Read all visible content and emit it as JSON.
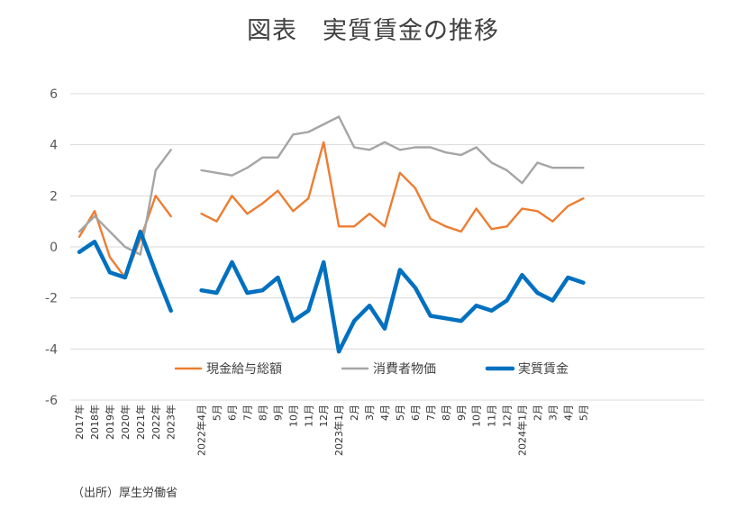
{
  "title": "図表　実質賃金の推移",
  "source": "（出所）厚生労働省",
  "chart_data": {
    "type": "line",
    "title": "図表　実質賃金の推移",
    "ylim": [
      -6,
      6
    ],
    "yticks": [
      6,
      4,
      2,
      0,
      -2,
      -4,
      -6
    ],
    "grid": true,
    "legend_position": "bottom-center",
    "categories": [
      "2017年",
      "2018年",
      "2019年",
      "2020年",
      "2021年",
      "2022年",
      "2023年",
      "",
      "2022年4月",
      "5月",
      "6月",
      "7月",
      "8月",
      "9月",
      "10月",
      "11月",
      "12月",
      "2023年1月",
      "2月",
      "3月",
      "4月",
      "5月",
      "6月",
      "7月",
      "8月",
      "9月",
      "10月",
      "11月",
      "12月",
      "2024年1月",
      "2月",
      "3月",
      "4月",
      "5月"
    ],
    "series": [
      {
        "name": "現金給与総額",
        "color": "#ED7D31",
        "values": [
          0.4,
          1.4,
          -0.4,
          -1.2,
          0.3,
          2.0,
          1.2,
          null,
          1.3,
          1.0,
          2.0,
          1.3,
          1.7,
          2.2,
          1.4,
          1.9,
          4.1,
          0.8,
          0.8,
          1.3,
          0.8,
          2.9,
          2.3,
          1.1,
          0.8,
          0.6,
          1.5,
          0.7,
          0.8,
          1.5,
          1.4,
          1.0,
          1.6,
          1.9
        ]
      },
      {
        "name": "消費者物価",
        "color": "#A5A5A5",
        "values": [
          0.6,
          1.2,
          0.6,
          0.0,
          -0.3,
          3.0,
          3.8,
          null,
          3.0,
          2.9,
          2.8,
          3.1,
          3.5,
          3.5,
          4.4,
          4.5,
          4.8,
          5.1,
          3.9,
          3.8,
          4.1,
          3.8,
          3.9,
          3.9,
          3.7,
          3.6,
          3.9,
          3.3,
          3.0,
          2.5,
          3.3,
          3.1,
          3.1,
          3.1
        ]
      },
      {
        "name": "実質賃金",
        "color": "#0070C0",
        "values": [
          -0.2,
          0.2,
          -1.0,
          -1.2,
          0.6,
          -1.0,
          -2.5,
          null,
          -1.7,
          -1.8,
          -0.6,
          -1.8,
          -1.7,
          -1.2,
          -2.9,
          -2.5,
          -0.6,
          -4.1,
          -2.9,
          -2.3,
          -3.2,
          -0.9,
          -1.6,
          -2.7,
          -2.8,
          -2.9,
          -2.3,
          -2.5,
          -2.1,
          -1.1,
          -1.8,
          -2.1,
          -1.2,
          -1.4
        ]
      }
    ]
  }
}
